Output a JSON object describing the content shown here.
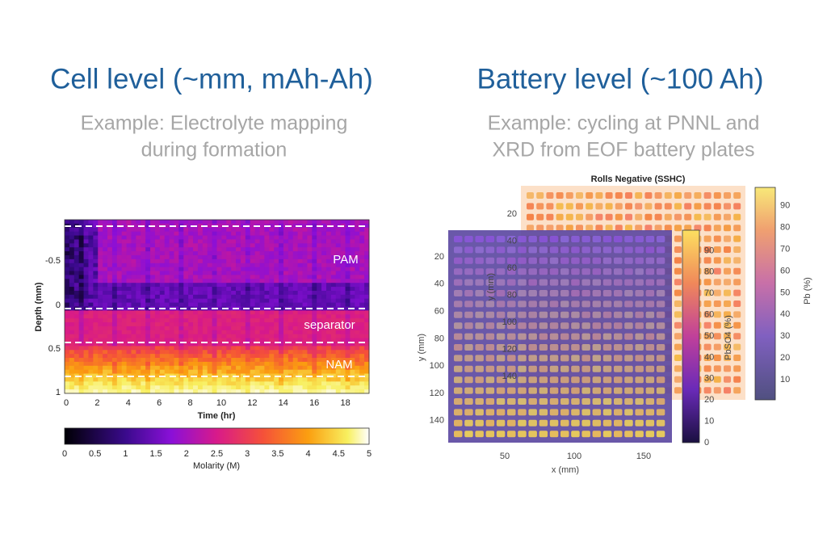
{
  "left": {
    "title": "Cell level (~mm, mAh-Ah)",
    "subtitle": [
      "Example: Electrolyte mapping",
      "during formation"
    ],
    "plot": {
      "y_label": "Depth (mm)",
      "y_ticks": [
        -0.5,
        0,
        0.5,
        1
      ],
      "x_label": "Time (hr)",
      "x_ticks": [
        0,
        2,
        4,
        6,
        8,
        10,
        12,
        14,
        16,
        18
      ],
      "regions": [
        "PAM",
        "separator",
        "NAM"
      ],
      "colorbar": {
        "ticks": [
          0,
          0.5,
          1,
          1.5,
          2,
          2.5,
          3,
          3.5,
          4,
          4.5,
          5
        ],
        "label": "Molarity (M)"
      }
    }
  },
  "right": {
    "title": "Battery level (~100 Ah)",
    "subtitle": [
      "Example: cycling at PNNL and",
      "XRD from EOF battery plates"
    ],
    "back_plot": {
      "title": "Rolls Negative (SSHC)",
      "y_label": "y (mm)",
      "y_ticks": [
        20,
        40,
        60,
        80,
        100,
        120,
        140
      ],
      "colorbar": {
        "ticks": [
          10,
          20,
          30,
          40,
          50,
          60,
          70,
          80,
          90
        ],
        "label": "Pb (%)"
      }
    },
    "front_plot": {
      "y_label": "y (mm)",
      "y_ticks": [
        20,
        40,
        60,
        80,
        100,
        120,
        140
      ],
      "x_label": "x (mm)",
      "x_ticks": [
        50,
        100,
        150
      ],
      "colorbar": {
        "ticks": [
          0,
          10,
          20,
          30,
          40,
          50,
          60,
          70,
          80,
          90
        ],
        "label": "PbSO4 (%)"
      }
    }
  }
}
